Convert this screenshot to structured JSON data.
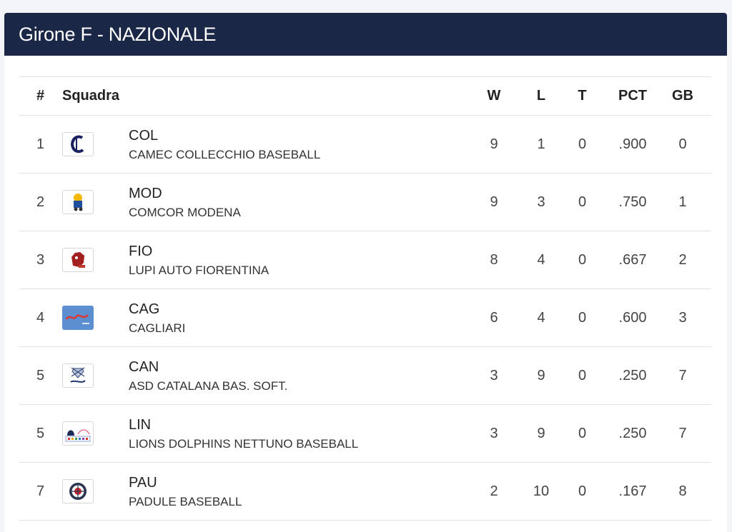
{
  "title": "Girone F - NAZIONALE",
  "columns": {
    "rank": "#",
    "team": "Squadra",
    "w": "W",
    "l": "L",
    "t": "T",
    "pct": "PCT",
    "gb": "GB"
  },
  "rows": [
    {
      "rank": "1",
      "abbr": "COL",
      "name": "CAMEC COLLECCHIO BASEBALL",
      "w": "9",
      "l": "1",
      "t": "0",
      "pct": ".900",
      "gb": "0",
      "logo": "collecchio-logo"
    },
    {
      "rank": "2",
      "abbr": "MOD",
      "name": "COMCOR MODENA",
      "w": "9",
      "l": "3",
      "t": "0",
      "pct": ".750",
      "gb": "1",
      "logo": "modena-logo"
    },
    {
      "rank": "3",
      "abbr": "FIO",
      "name": "LUPI AUTO FIORENTINA",
      "w": "8",
      "l": "4",
      "t": "0",
      "pct": ".667",
      "gb": "2",
      "logo": "fiorentina-logo"
    },
    {
      "rank": "4",
      "abbr": "CAG",
      "name": "CAGLIARI",
      "w": "6",
      "l": "4",
      "t": "0",
      "pct": ".600",
      "gb": "3",
      "logo": "cagliari-logo"
    },
    {
      "rank": "5",
      "abbr": "CAN",
      "name": "ASD CATALANA BAS. SOFT.",
      "w": "3",
      "l": "9",
      "t": "0",
      "pct": ".250",
      "gb": "7",
      "logo": "catalana-logo"
    },
    {
      "rank": "5",
      "abbr": "LIN",
      "name": "LIONS DOLPHINS NETTUNO BASEBALL",
      "w": "3",
      "l": "9",
      "t": "0",
      "pct": ".250",
      "gb": "7",
      "logo": "lions-logo"
    },
    {
      "rank": "7",
      "abbr": "PAU",
      "name": "PADULE BASEBALL",
      "w": "2",
      "l": "10",
      "t": "0",
      "pct": ".167",
      "gb": "8",
      "logo": "padule-logo"
    }
  ]
}
